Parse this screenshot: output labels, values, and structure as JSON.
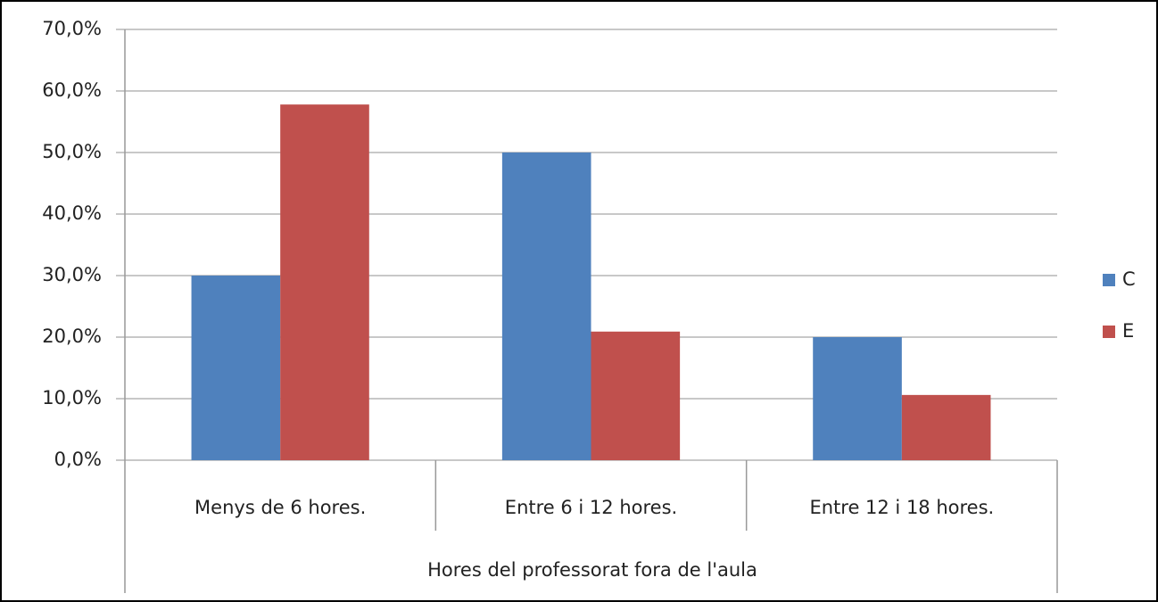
{
  "chart_data": {
    "type": "bar",
    "x_label": "Hores del professorat fora de l'aula",
    "categories": [
      "Menys de 6 hores.",
      "Entre 6 i  12 hores.",
      "Entre 12 i 18 hores."
    ],
    "series": [
      {
        "name": "C",
        "color": "#4f81bd",
        "values": [
          30,
          50,
          20
        ]
      },
      {
        "name": "E",
        "color": "#c0504d",
        "values": [
          57.8,
          20.9,
          10.6
        ]
      }
    ],
    "ylim": [
      0,
      70
    ],
    "yticks": [
      {
        "value": 0,
        "label": "0,0%"
      },
      {
        "value": 10,
        "label": "10,0%"
      },
      {
        "value": 20,
        "label": "20,0%"
      },
      {
        "value": 30,
        "label": "30,0%"
      },
      {
        "value": 40,
        "label": "40,0%"
      },
      {
        "value": 50,
        "label": "50,0%"
      },
      {
        "value": 60,
        "label": "60,0%"
      },
      {
        "value": 70,
        "label": "70,0%"
      }
    ],
    "grid": true,
    "legend": "right"
  }
}
